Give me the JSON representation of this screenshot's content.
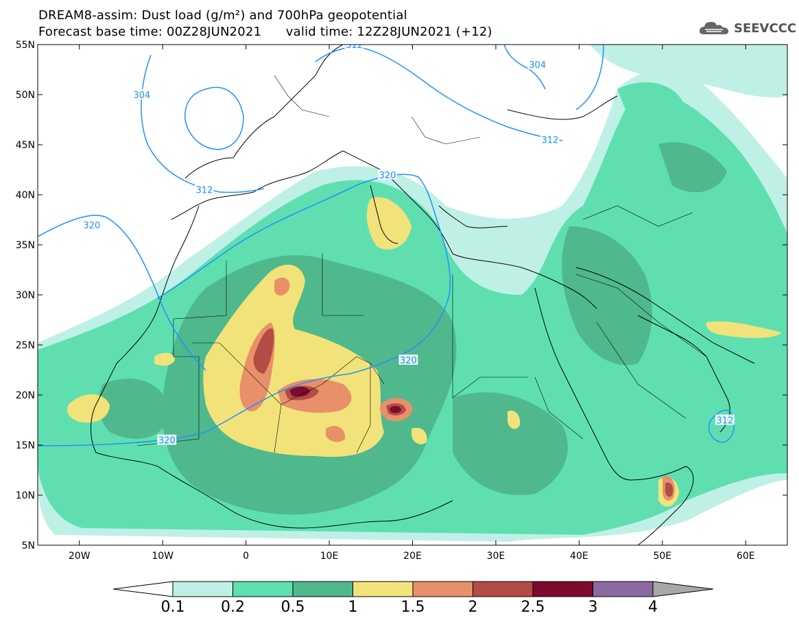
{
  "header": {
    "title_line1": "DREAM8-assim: Dust load (g/m²) and 700hPa geopotential",
    "title_line2": "Forecast base time: 00Z28JUN2021      valid time: 12Z28JUN2021 (+12)",
    "logo_text": "SEEVCCC",
    "logo_icon": "cloud-logo-icon"
  },
  "chart_data": {
    "type": "heatmap",
    "title": "DREAM8-assim: Dust load (g/m²) and 700hPa geopotential",
    "subtitle": "Forecast base time: 00Z28JUN2021 valid time: 12Z28JUN2021 (+12)",
    "x_ticks": [
      "20W",
      "10W",
      "0",
      "10E",
      "20E",
      "30E",
      "40E",
      "50E",
      "60E"
    ],
    "x_tick_values": [
      -20,
      -10,
      0,
      10,
      20,
      30,
      40,
      50,
      60
    ],
    "y_ticks": [
      "55N",
      "50N",
      "45N",
      "40N",
      "35N",
      "30N",
      "25N",
      "20N",
      "15N",
      "10N",
      "5N"
    ],
    "y_tick_values": [
      55,
      50,
      45,
      40,
      35,
      30,
      25,
      20,
      15,
      10,
      5
    ],
    "xlim": [
      -25,
      65
    ],
    "ylim": [
      5,
      55
    ],
    "colorbar": {
      "levels": [
        "0.1",
        "0.2",
        "0.5",
        "1",
        "1.5",
        "2",
        "2.5",
        "3",
        "4"
      ],
      "colors": [
        "#ffffff",
        "#bff0e6",
        "#5fdfb0",
        "#4fb88d",
        "#f2e27a",
        "#e8906a",
        "#b24c45",
        "#7e0a2e",
        "#8a6aa0",
        "#a8a8a8"
      ]
    },
    "contour_labels": [
      {
        "text": "304",
        "lon": -12.5,
        "lat": 50
      },
      {
        "text": "312",
        "lon": -5,
        "lat": 40.5
      },
      {
        "text": "320",
        "lon": -18.5,
        "lat": 37
      },
      {
        "text": "320",
        "lon": 17,
        "lat": 42
      },
      {
        "text": "320",
        "lon": 19.5,
        "lat": 23.5
      },
      {
        "text": "320",
        "lon": -9.5,
        "lat": 15.5
      },
      {
        "text": "312",
        "lon": 13,
        "lat": 55
      },
      {
        "text": "304",
        "lon": 35,
        "lat": 53
      },
      {
        "text": "312",
        "lon": 36.5,
        "lat": 45.5
      },
      {
        "text": "312",
        "lon": 57.5,
        "lat": 17.5
      }
    ],
    "hotspots": [
      {
        "lon": 6,
        "lat": 20.3,
        "level": "3"
      },
      {
        "lon": 17.8,
        "lat": 18.5,
        "level": "2.5"
      },
      {
        "lon": 51,
        "lat": 11,
        "level": "2"
      },
      {
        "lon": 2,
        "lat": 25,
        "level": "2"
      }
    ],
    "grid": false,
    "legend": "bottom"
  }
}
